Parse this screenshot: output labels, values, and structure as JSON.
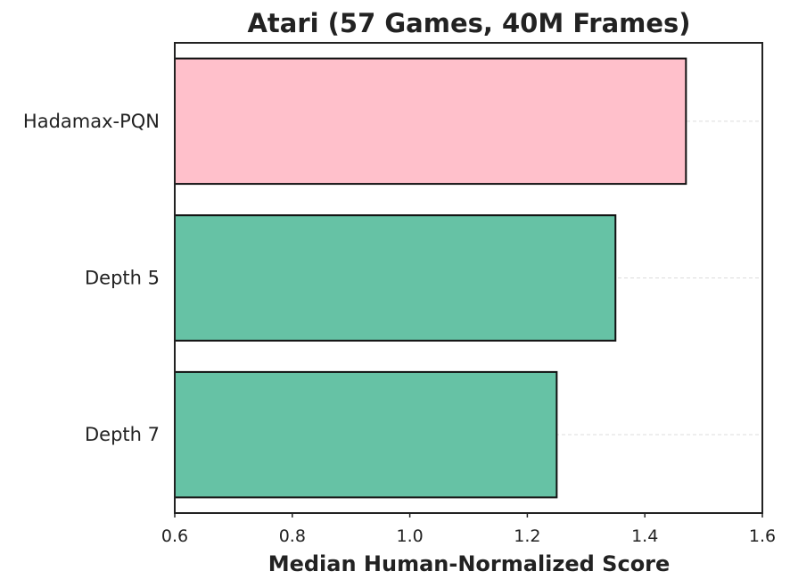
{
  "chart_data": {
    "type": "bar",
    "orientation": "horizontal",
    "title": "Atari (57 Games, 40M Frames)",
    "xlabel": "Median Human-Normalized Score",
    "ylabel": "",
    "categories": [
      "Hadamax-PQN",
      "Depth 5",
      "Depth 7"
    ],
    "values": [
      1.47,
      1.35,
      1.25
    ],
    "colors": [
      "#ffc0cb",
      "#66c2a5",
      "#66c2a5"
    ],
    "xlim": [
      0.6,
      1.6
    ],
    "xticks": [
      "0.6",
      "0.8",
      "1.0",
      "1.2",
      "1.4",
      "1.6"
    ],
    "grid": "horizontal-dashed",
    "legend": "none"
  }
}
